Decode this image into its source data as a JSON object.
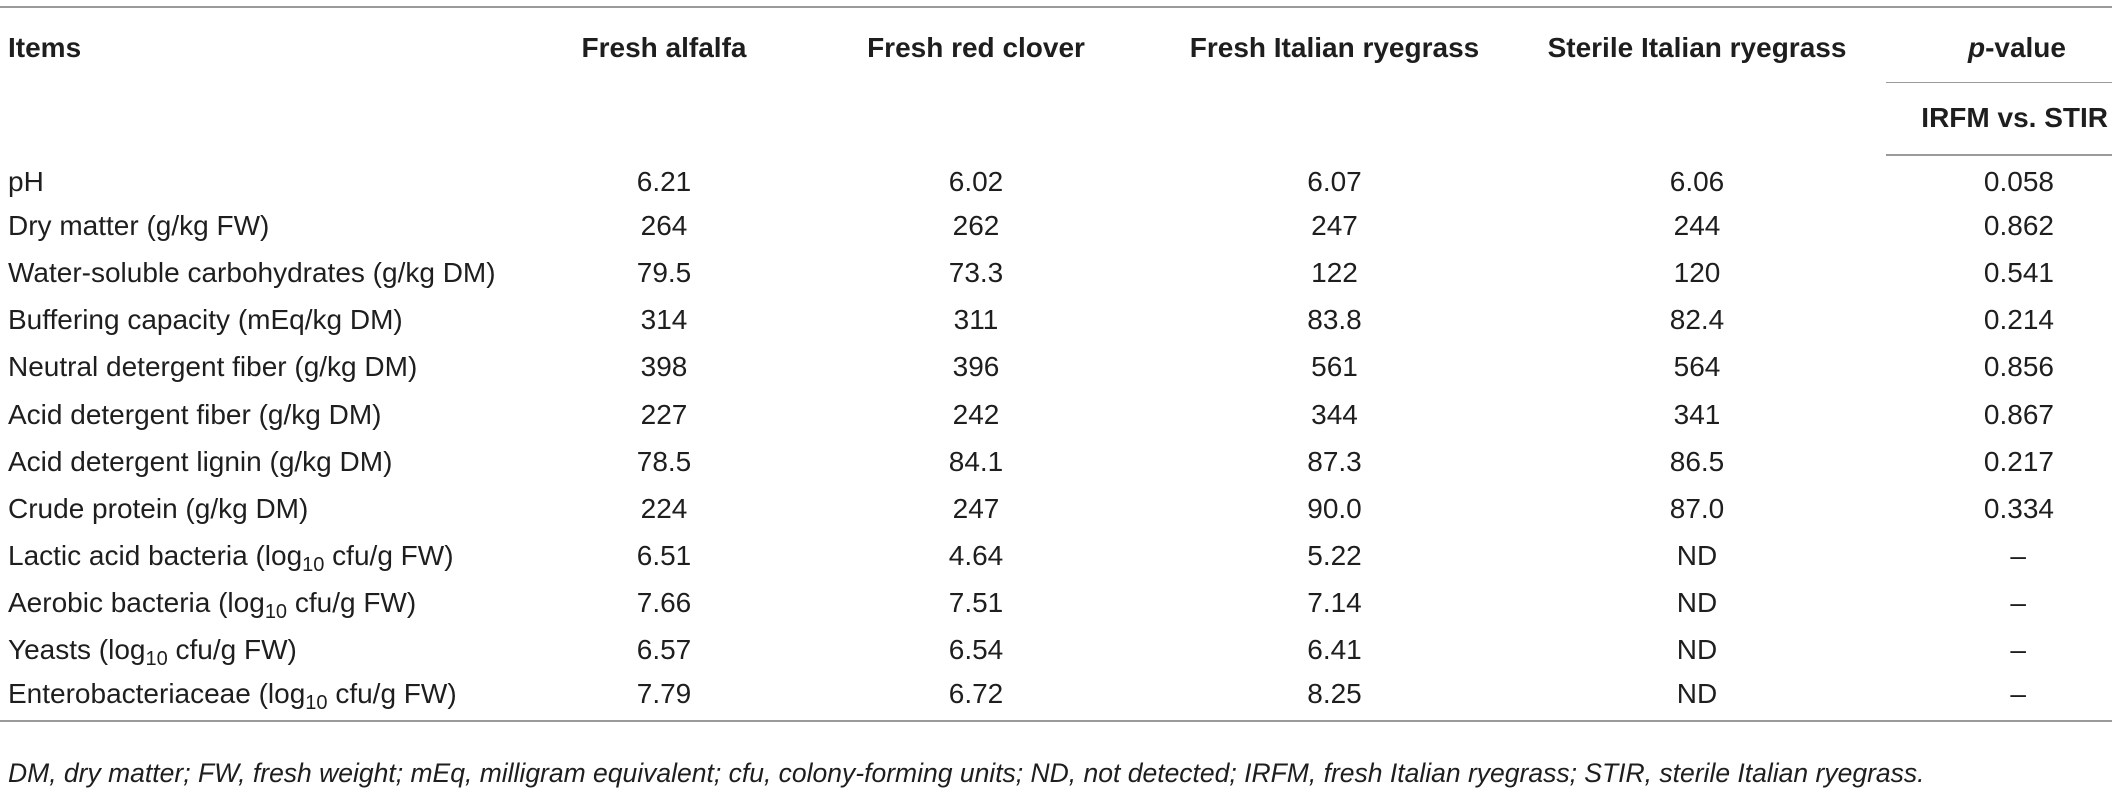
{
  "table": {
    "headers": {
      "items": "Items",
      "col1": "Fresh alfalfa",
      "col2": "Fresh red clover",
      "col3": "Fresh Italian ryegrass",
      "col4": "Sterile Italian ryegrass",
      "pvalue_prefix": "p",
      "pvalue_suffix": "-value",
      "pvalue_sub": "IRFM vs. STIR"
    },
    "rows": [
      {
        "label": "pH",
        "sub": "",
        "label_after": "",
        "c1": "6.21",
        "c2": "6.02",
        "c3": "6.07",
        "c4": "6.06",
        "p": "0.058"
      },
      {
        "label": "Dry matter (g/kg FW)",
        "sub": "",
        "label_after": "",
        "c1": "264",
        "c2": "262",
        "c3": "247",
        "c4": "244",
        "p": "0.862"
      },
      {
        "label": "Water-soluble carbohydrates (g/kg DM)",
        "sub": "",
        "label_after": "",
        "c1": "79.5",
        "c2": "73.3",
        "c3": "122",
        "c4": "120",
        "p": "0.541"
      },
      {
        "label": "Buffering capacity (mEq/kg DM)",
        "sub": "",
        "label_after": "",
        "c1": "314",
        "c2": "311",
        "c3": "83.8",
        "c4": "82.4",
        "p": "0.214"
      },
      {
        "label": "Neutral detergent fiber (g/kg DM)",
        "sub": "",
        "label_after": "",
        "c1": "398",
        "c2": "396",
        "c3": "561",
        "c4": "564",
        "p": "0.856"
      },
      {
        "label": "Acid detergent fiber (g/kg DM)",
        "sub": "",
        "label_after": "",
        "c1": "227",
        "c2": "242",
        "c3": "344",
        "c4": "341",
        "p": "0.867"
      },
      {
        "label": "Acid detergent lignin (g/kg DM)",
        "sub": "",
        "label_after": "",
        "c1": "78.5",
        "c2": "84.1",
        "c3": "87.3",
        "c4": "86.5",
        "p": "0.217"
      },
      {
        "label": "Crude protein (g/kg DM)",
        "sub": "",
        "label_after": "",
        "c1": "224",
        "c2": "247",
        "c3": "90.0",
        "c4": "87.0",
        "p": "0.334"
      },
      {
        "label": "Lactic acid bacteria (log",
        "sub": "10",
        "label_after": " cfu/g FW)",
        "c1": "6.51",
        "c2": "4.64",
        "c3": "5.22",
        "c4": "ND",
        "p": "–"
      },
      {
        "label": "Aerobic bacteria (log",
        "sub": "10",
        "label_after": " cfu/g FW)",
        "c1": "7.66",
        "c2": "7.51",
        "c3": "7.14",
        "c4": "ND",
        "p": "–"
      },
      {
        "label": "Yeasts (log",
        "sub": "10",
        "label_after": " cfu/g FW)",
        "c1": "6.57",
        "c2": "6.54",
        "c3": "6.41",
        "c4": "ND",
        "p": "–"
      },
      {
        "label": "Enterobacteriaceae (log",
        "sub": "10",
        "label_after": " cfu/g FW)",
        "c1": "7.79",
        "c2": "6.72",
        "c3": "8.25",
        "c4": "ND",
        "p": "–"
      }
    ]
  },
  "footnote": "DM, dry matter; FW, fresh weight; mEq, milligram equivalent; cfu, colony-forming units; ND, not detected; IRFM, fresh Italian ryegrass; STIR, sterile Italian ryegrass."
}
